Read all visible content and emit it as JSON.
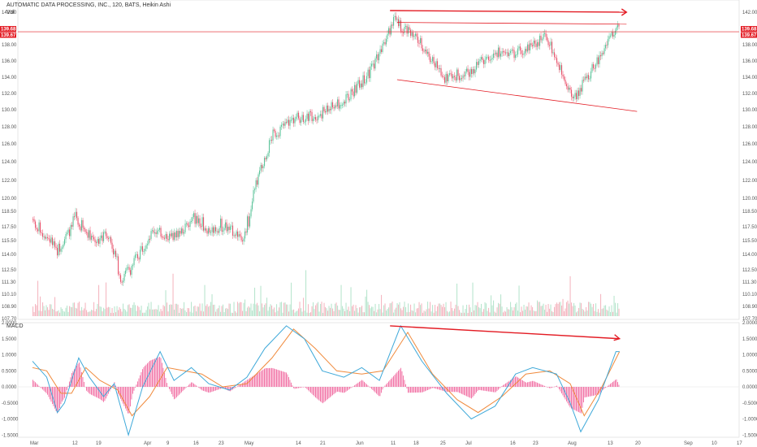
{
  "header": {
    "title": "AUTOMATIC DATA PROCESSING, INC., 120, BATS, Heikin Ashi",
    "volume_label": "Vol",
    "macd_label": "MACD"
  },
  "colors": {
    "up": "#5cc39a",
    "down": "#e8546d",
    "volume_up": "#b9e6cf",
    "volume_down": "#f5b8c2",
    "annotation": "#e31b23",
    "macd_line": "#3fa9d9",
    "signal_line": "#f08a3c",
    "histogram": "#f06aa0"
  },
  "price_tags": {
    "upper": "139.68",
    "lower": "139.67"
  },
  "chart_data": [
    {
      "type": "candlestick",
      "title": "AUTOMATIC DATA PROCESSING, INC., 120, BATS, Heikin Ashi",
      "y_ticks": [
        "142.00",
        "140.00",
        "138.00",
        "136.00",
        "134.00",
        "132.00",
        "130.00",
        "128.00",
        "126.00",
        "124.00",
        "122.00",
        "120.00",
        "118.50",
        "117.50",
        "115.50",
        "114.00",
        "112.50",
        "111.30",
        "110.10",
        "108.90",
        "107.70"
      ],
      "x_ticks": [
        "Mar",
        "12",
        "19",
        "Apr",
        "9",
        "16",
        "23",
        "May",
        "14",
        "21",
        "Jun",
        "11",
        "18",
        "25",
        "Jul",
        "16",
        "23",
        "Aug",
        "13",
        "20",
        "Sep",
        "10",
        "17"
      ],
      "last_price": 139.68,
      "path": [
        [
          "Mar 1",
          118.0
        ],
        [
          "Mar 8",
          114.5
        ],
        [
          "Mar 13",
          118.0
        ],
        [
          "Mar 19",
          115.5
        ],
        [
          "Mar 22",
          116.5
        ],
        [
          "Mar 26",
          111.5
        ],
        [
          "Mar 30",
          113.5
        ],
        [
          "Apr 4",
          117.0
        ],
        [
          "Apr 9",
          116.0
        ],
        [
          "Apr 16",
          118.0
        ],
        [
          "Apr 20",
          117.0
        ],
        [
          "Apr 24",
          117.5
        ],
        [
          "Apr 30",
          116.0
        ],
        [
          "May 3",
          121.0
        ],
        [
          "May 8",
          127.0
        ],
        [
          "May 14",
          129.0
        ],
        [
          "May 21",
          129.5
        ],
        [
          "May 28",
          131.0
        ],
        [
          "Jun 4",
          134.5
        ],
        [
          "Jun 11",
          141.0
        ],
        [
          "Jun 18",
          138.5
        ],
        [
          "Jun 25",
          134.0
        ],
        [
          "Jul 2",
          134.5
        ],
        [
          "Jul 9",
          137.0
        ],
        [
          "Jul 16",
          137.0
        ],
        [
          "Jul 25",
          139.0
        ],
        [
          "Jul 30",
          134.0
        ],
        [
          "Aug 2",
          131.5
        ],
        [
          "Aug 8",
          135.5
        ],
        [
          "Aug 14",
          140.5
        ],
        [
          "Aug 15",
          139.7
        ]
      ],
      "annotations": [
        {
          "kind": "horizontal_line",
          "price": 139.68
        },
        {
          "kind": "trendline",
          "from": [
            "Jun 12",
            140.8
          ],
          "to": [
            "Aug 17",
            140.6
          ]
        },
        {
          "kind": "trendline",
          "from": [
            "Jun 12",
            133.7
          ],
          "to": [
            "Aug 20",
            129.8
          ]
        },
        {
          "kind": "arrow",
          "from": [
            "Jun 10",
            142.2
          ],
          "to": [
            "Aug 17",
            142.0
          ]
        }
      ]
    },
    {
      "type": "line",
      "title": "MACD",
      "y_ticks": [
        "2.0000",
        "1.5000",
        "1.0000",
        "0.5000",
        "0.0000",
        "-0.5000",
        "-1.0000",
        "-1.5000"
      ],
      "series": [
        {
          "name": "",
          "values": [
            [
              "Mar 1",
              0.8
            ],
            [
              "Mar 5",
              0.3
            ],
            [
              "Mar 8",
              -0.8
            ],
            [
              "Mar 10",
              -0.5
            ],
            [
              "Mar 14",
              0.9
            ],
            [
              "Mar 17",
              0.3
            ],
            [
              "Mar 21",
              -0.3
            ],
            [
              "Mar 24",
              0.1
            ],
            [
              "Mar 28",
              -1.5
            ],
            [
              "Apr 1",
              0.0
            ],
            [
              "Apr 6",
              1.1
            ],
            [
              "Apr 10",
              0.2
            ],
            [
              "Apr 15",
              0.6
            ],
            [
              "Apr 20",
              0.1
            ],
            [
              "Apr 26",
              -0.1
            ],
            [
              "May 1",
              0.3
            ],
            [
              "May 6",
              1.2
            ],
            [
              "May 12",
              1.9
            ],
            [
              "May 17",
              1.5
            ],
            [
              "May 22",
              0.5
            ],
            [
              "May 28",
              0.3
            ],
            [
              "Jun 2",
              0.6
            ],
            [
              "Jun 7",
              0.2
            ],
            [
              "Jun 13",
              1.9
            ],
            [
              "Jun 19",
              0.8
            ],
            [
              "Jun 26",
              -0.2
            ],
            [
              "Jul 3",
              -1.0
            ],
            [
              "Jul 10",
              -0.6
            ],
            [
              "Jul 16",
              0.4
            ],
            [
              "Jul 21",
              0.6
            ],
            [
              "Jul 28",
              0.4
            ],
            [
              "Aug 1",
              -0.5
            ],
            [
              "Aug 4",
              -1.4
            ],
            [
              "Aug 9",
              -0.4
            ],
            [
              "Aug 14",
              1.1
            ],
            [
              "Aug 15",
              1.1
            ]
          ]
        },
        {
          "name": "",
          "values": [
            [
              "Mar 1",
              0.6
            ],
            [
              "Mar 5",
              0.5
            ],
            [
              "Mar 9",
              -0.2
            ],
            [
              "Mar 12",
              -0.2
            ],
            [
              "Mar 16",
              0.6
            ],
            [
              "Mar 20",
              0.2
            ],
            [
              "Mar 25",
              -0.1
            ],
            [
              "Mar 29",
              -0.9
            ],
            [
              "Apr 3",
              -0.3
            ],
            [
              "Apr 8",
              0.6
            ],
            [
              "Apr 13",
              0.5
            ],
            [
              "Apr 18",
              0.4
            ],
            [
              "Apr 24",
              0.0
            ],
            [
              "May 1",
              0.1
            ],
            [
              "May 8",
              0.9
            ],
            [
              "May 14",
              1.8
            ],
            [
              "May 20",
              1.2
            ],
            [
              "May 26",
              0.5
            ],
            [
              "Jun 2",
              0.4
            ],
            [
              "Jun 8",
              0.5
            ],
            [
              "Jun 15",
              1.7
            ],
            [
              "Jun 22",
              0.4
            ],
            [
              "Jun 29",
              -0.4
            ],
            [
              "Jul 5",
              -0.8
            ],
            [
              "Jul 12",
              -0.3
            ],
            [
              "Jul 19",
              0.4
            ],
            [
              "Jul 26",
              0.5
            ],
            [
              "Aug 1",
              0.1
            ],
            [
              "Aug 5",
              -0.9
            ],
            [
              "Aug 10",
              0.0
            ],
            [
              "Aug 15",
              1.1
            ]
          ]
        }
      ],
      "annotations": [
        {
          "kind": "arrow",
          "from": [
            "Jun 10",
            1.9
          ],
          "to": [
            "Aug 15",
            1.5
          ]
        }
      ]
    }
  ]
}
